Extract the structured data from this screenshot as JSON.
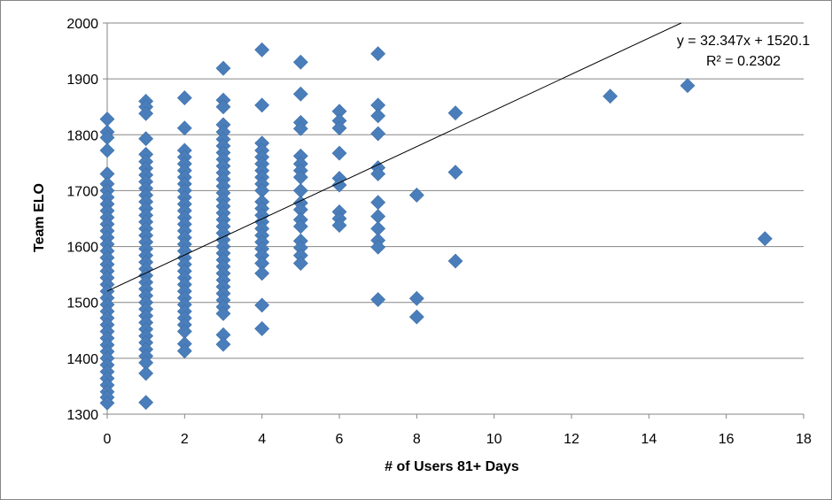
{
  "chart_data": {
    "type": "scatter",
    "xlabel": "# of Users 81+ Days",
    "ylabel": "Team ELO",
    "xlim": [
      0,
      18
    ],
    "ylim": [
      1300,
      2000
    ],
    "x_ticks": [
      0,
      2,
      4,
      6,
      8,
      10,
      12,
      14,
      16,
      18
    ],
    "y_ticks": [
      1300,
      1400,
      1500,
      1600,
      1700,
      1800,
      1900,
      2000
    ],
    "grid": "horizontal",
    "marker": "diamond",
    "marker_color": "#4a7ebb",
    "trendline": {
      "slope": 32.347,
      "intercept": 1520.1,
      "color": "#000000",
      "equation_label": "y = 32.347x + 1520.1",
      "r2_label": "R² = 0.2302"
    },
    "points": [
      {
        "x": 0,
        "y": 1828
      },
      {
        "x": 0,
        "y": 1805
      },
      {
        "x": 0,
        "y": 1795
      },
      {
        "x": 0,
        "y": 1772
      },
      {
        "x": 0,
        "y": 1730
      },
      {
        "x": 0,
        "y": 1712
      },
      {
        "x": 0,
        "y": 1700
      },
      {
        "x": 0,
        "y": 1688
      },
      {
        "x": 0,
        "y": 1676
      },
      {
        "x": 0,
        "y": 1664
      },
      {
        "x": 0,
        "y": 1652
      },
      {
        "x": 0,
        "y": 1640
      },
      {
        "x": 0,
        "y": 1628
      },
      {
        "x": 0,
        "y": 1616
      },
      {
        "x": 0,
        "y": 1604
      },
      {
        "x": 0,
        "y": 1592
      },
      {
        "x": 0,
        "y": 1580
      },
      {
        "x": 0,
        "y": 1568
      },
      {
        "x": 0,
        "y": 1556
      },
      {
        "x": 0,
        "y": 1544
      },
      {
        "x": 0,
        "y": 1532
      },
      {
        "x": 0,
        "y": 1520
      },
      {
        "x": 0,
        "y": 1508
      },
      {
        "x": 0,
        "y": 1496
      },
      {
        "x": 0,
        "y": 1484
      },
      {
        "x": 0,
        "y": 1472
      },
      {
        "x": 0,
        "y": 1460
      },
      {
        "x": 0,
        "y": 1448
      },
      {
        "x": 0,
        "y": 1436
      },
      {
        "x": 0,
        "y": 1424
      },
      {
        "x": 0,
        "y": 1412
      },
      {
        "x": 0,
        "y": 1400
      },
      {
        "x": 0,
        "y": 1388
      },
      {
        "x": 0,
        "y": 1376
      },
      {
        "x": 0,
        "y": 1364
      },
      {
        "x": 0,
        "y": 1352
      },
      {
        "x": 0,
        "y": 1340
      },
      {
        "x": 0,
        "y": 1330
      },
      {
        "x": 0,
        "y": 1320
      },
      {
        "x": 1,
        "y": 1860
      },
      {
        "x": 1,
        "y": 1850
      },
      {
        "x": 1,
        "y": 1838
      },
      {
        "x": 1,
        "y": 1793
      },
      {
        "x": 1,
        "y": 1765
      },
      {
        "x": 1,
        "y": 1752
      },
      {
        "x": 1,
        "y": 1740
      },
      {
        "x": 1,
        "y": 1728
      },
      {
        "x": 1,
        "y": 1716
      },
      {
        "x": 1,
        "y": 1704
      },
      {
        "x": 1,
        "y": 1692
      },
      {
        "x": 1,
        "y": 1680
      },
      {
        "x": 1,
        "y": 1668
      },
      {
        "x": 1,
        "y": 1656
      },
      {
        "x": 1,
        "y": 1644
      },
      {
        "x": 1,
        "y": 1632
      },
      {
        "x": 1,
        "y": 1620
      },
      {
        "x": 1,
        "y": 1608
      },
      {
        "x": 1,
        "y": 1596
      },
      {
        "x": 1,
        "y": 1584
      },
      {
        "x": 1,
        "y": 1572
      },
      {
        "x": 1,
        "y": 1560
      },
      {
        "x": 1,
        "y": 1548
      },
      {
        "x": 1,
        "y": 1536
      },
      {
        "x": 1,
        "y": 1524
      },
      {
        "x": 1,
        "y": 1512
      },
      {
        "x": 1,
        "y": 1500
      },
      {
        "x": 1,
        "y": 1488
      },
      {
        "x": 1,
        "y": 1476
      },
      {
        "x": 1,
        "y": 1464
      },
      {
        "x": 1,
        "y": 1452
      },
      {
        "x": 1,
        "y": 1440
      },
      {
        "x": 1,
        "y": 1428
      },
      {
        "x": 1,
        "y": 1416
      },
      {
        "x": 1,
        "y": 1404
      },
      {
        "x": 1,
        "y": 1392
      },
      {
        "x": 1,
        "y": 1373
      },
      {
        "x": 1,
        "y": 1321
      },
      {
        "x": 2,
        "y": 1866
      },
      {
        "x": 2,
        "y": 1812
      },
      {
        "x": 2,
        "y": 1772
      },
      {
        "x": 2,
        "y": 1760
      },
      {
        "x": 2,
        "y": 1748
      },
      {
        "x": 2,
        "y": 1736
      },
      {
        "x": 2,
        "y": 1724
      },
      {
        "x": 2,
        "y": 1712
      },
      {
        "x": 2,
        "y": 1700
      },
      {
        "x": 2,
        "y": 1688
      },
      {
        "x": 2,
        "y": 1676
      },
      {
        "x": 2,
        "y": 1664
      },
      {
        "x": 2,
        "y": 1652
      },
      {
        "x": 2,
        "y": 1640
      },
      {
        "x": 2,
        "y": 1628
      },
      {
        "x": 2,
        "y": 1616
      },
      {
        "x": 2,
        "y": 1604
      },
      {
        "x": 2,
        "y": 1592
      },
      {
        "x": 2,
        "y": 1580
      },
      {
        "x": 2,
        "y": 1568
      },
      {
        "x": 2,
        "y": 1556
      },
      {
        "x": 2,
        "y": 1544
      },
      {
        "x": 2,
        "y": 1532
      },
      {
        "x": 2,
        "y": 1520
      },
      {
        "x": 2,
        "y": 1508
      },
      {
        "x": 2,
        "y": 1496
      },
      {
        "x": 2,
        "y": 1484
      },
      {
        "x": 2,
        "y": 1472
      },
      {
        "x": 2,
        "y": 1460
      },
      {
        "x": 2,
        "y": 1448
      },
      {
        "x": 2,
        "y": 1426
      },
      {
        "x": 2,
        "y": 1413
      },
      {
        "x": 3,
        "y": 1919
      },
      {
        "x": 3,
        "y": 1862
      },
      {
        "x": 3,
        "y": 1850
      },
      {
        "x": 3,
        "y": 1818
      },
      {
        "x": 3,
        "y": 1805
      },
      {
        "x": 3,
        "y": 1792
      },
      {
        "x": 3,
        "y": 1780
      },
      {
        "x": 3,
        "y": 1768
      },
      {
        "x": 3,
        "y": 1756
      },
      {
        "x": 3,
        "y": 1744
      },
      {
        "x": 3,
        "y": 1732
      },
      {
        "x": 3,
        "y": 1720
      },
      {
        "x": 3,
        "y": 1708
      },
      {
        "x": 3,
        "y": 1696
      },
      {
        "x": 3,
        "y": 1684
      },
      {
        "x": 3,
        "y": 1672
      },
      {
        "x": 3,
        "y": 1660
      },
      {
        "x": 3,
        "y": 1648
      },
      {
        "x": 3,
        "y": 1636
      },
      {
        "x": 3,
        "y": 1624
      },
      {
        "x": 3,
        "y": 1612
      },
      {
        "x": 3,
        "y": 1600
      },
      {
        "x": 3,
        "y": 1588
      },
      {
        "x": 3,
        "y": 1576
      },
      {
        "x": 3,
        "y": 1564
      },
      {
        "x": 3,
        "y": 1552
      },
      {
        "x": 3,
        "y": 1540
      },
      {
        "x": 3,
        "y": 1528
      },
      {
        "x": 3,
        "y": 1516
      },
      {
        "x": 3,
        "y": 1504
      },
      {
        "x": 3,
        "y": 1492
      },
      {
        "x": 3,
        "y": 1480
      },
      {
        "x": 3,
        "y": 1442
      },
      {
        "x": 3,
        "y": 1425
      },
      {
        "x": 4,
        "y": 1952
      },
      {
        "x": 4,
        "y": 1853
      },
      {
        "x": 4,
        "y": 1785
      },
      {
        "x": 4,
        "y": 1772
      },
      {
        "x": 4,
        "y": 1760
      },
      {
        "x": 4,
        "y": 1748
      },
      {
        "x": 4,
        "y": 1736
      },
      {
        "x": 4,
        "y": 1724
      },
      {
        "x": 4,
        "y": 1712
      },
      {
        "x": 4,
        "y": 1700
      },
      {
        "x": 4,
        "y": 1680
      },
      {
        "x": 4,
        "y": 1668
      },
      {
        "x": 4,
        "y": 1656
      },
      {
        "x": 4,
        "y": 1644
      },
      {
        "x": 4,
        "y": 1632
      },
      {
        "x": 4,
        "y": 1620
      },
      {
        "x": 4,
        "y": 1608
      },
      {
        "x": 4,
        "y": 1596
      },
      {
        "x": 4,
        "y": 1584
      },
      {
        "x": 4,
        "y": 1570
      },
      {
        "x": 4,
        "y": 1552
      },
      {
        "x": 4,
        "y": 1495
      },
      {
        "x": 4,
        "y": 1453
      },
      {
        "x": 5,
        "y": 1930
      },
      {
        "x": 5,
        "y": 1873
      },
      {
        "x": 5,
        "y": 1822
      },
      {
        "x": 5,
        "y": 1811
      },
      {
        "x": 5,
        "y": 1762
      },
      {
        "x": 5,
        "y": 1748
      },
      {
        "x": 5,
        "y": 1736
      },
      {
        "x": 5,
        "y": 1724
      },
      {
        "x": 5,
        "y": 1700
      },
      {
        "x": 5,
        "y": 1678
      },
      {
        "x": 5,
        "y": 1666
      },
      {
        "x": 5,
        "y": 1648
      },
      {
        "x": 5,
        "y": 1636
      },
      {
        "x": 5,
        "y": 1610
      },
      {
        "x": 5,
        "y": 1598
      },
      {
        "x": 5,
        "y": 1584
      },
      {
        "x": 5,
        "y": 1570
      },
      {
        "x": 6,
        "y": 1842
      },
      {
        "x": 6,
        "y": 1825
      },
      {
        "x": 6,
        "y": 1812
      },
      {
        "x": 6,
        "y": 1767
      },
      {
        "x": 6,
        "y": 1722
      },
      {
        "x": 6,
        "y": 1710
      },
      {
        "x": 6,
        "y": 1662
      },
      {
        "x": 6,
        "y": 1650
      },
      {
        "x": 6,
        "y": 1638
      },
      {
        "x": 7,
        "y": 1945
      },
      {
        "x": 7,
        "y": 1853
      },
      {
        "x": 7,
        "y": 1834
      },
      {
        "x": 7,
        "y": 1802
      },
      {
        "x": 7,
        "y": 1741
      },
      {
        "x": 7,
        "y": 1730
      },
      {
        "x": 7,
        "y": 1679
      },
      {
        "x": 7,
        "y": 1654
      },
      {
        "x": 7,
        "y": 1632
      },
      {
        "x": 7,
        "y": 1611
      },
      {
        "x": 7,
        "y": 1599
      },
      {
        "x": 7,
        "y": 1505
      },
      {
        "x": 8,
        "y": 1692
      },
      {
        "x": 8,
        "y": 1507
      },
      {
        "x": 8,
        "y": 1474
      },
      {
        "x": 9,
        "y": 1839
      },
      {
        "x": 9,
        "y": 1733
      },
      {
        "x": 9,
        "y": 1574
      },
      {
        "x": 13,
        "y": 1869
      },
      {
        "x": 15,
        "y": 1888
      },
      {
        "x": 17,
        "y": 1614
      }
    ]
  }
}
